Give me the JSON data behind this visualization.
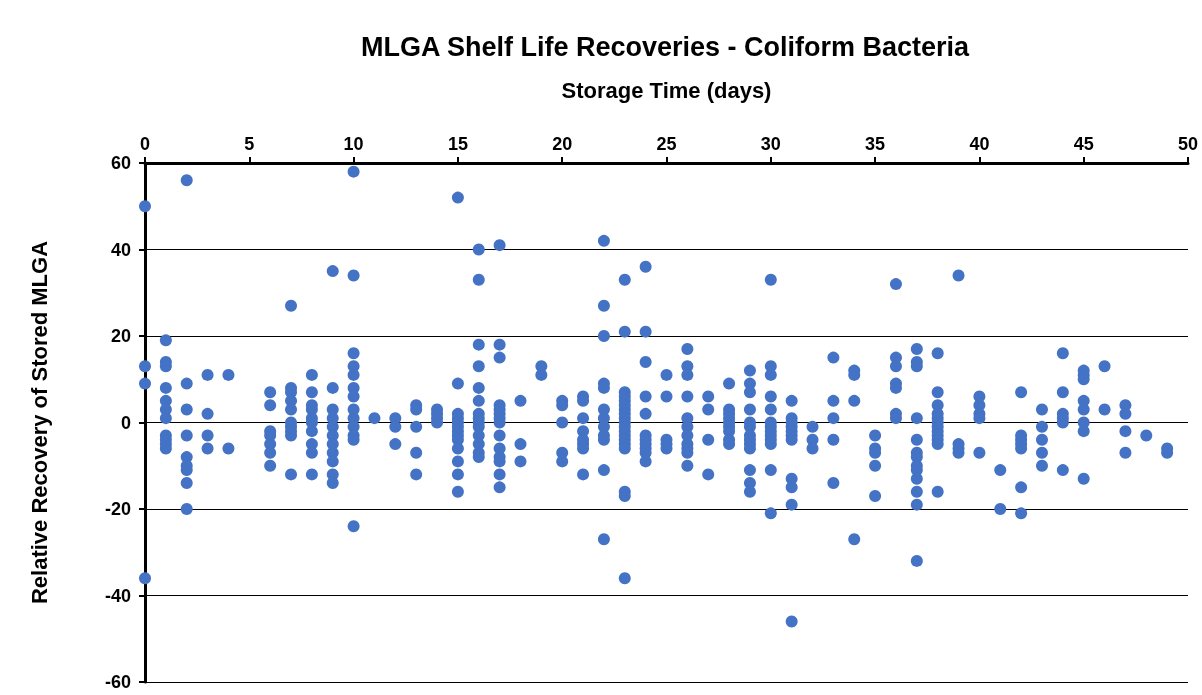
{
  "chart_data": {
    "type": "scatter",
    "title": "MLGA Shelf Life Recoveries - Coliform Bacteria",
    "xlabel": "Storage Time (days)",
    "ylabel": "Relative Recovery of Stored MLGA",
    "x": [
      0,
      0,
      0,
      0,
      1,
      1,
      1,
      1,
      1,
      1,
      1,
      1,
      1,
      1,
      1,
      2,
      2,
      2,
      2,
      2,
      2,
      2,
      2,
      2,
      3,
      3,
      3,
      3,
      4,
      4,
      6,
      6,
      6,
      6,
      6,
      6,
      6,
      7,
      7,
      7,
      7,
      7,
      7,
      7,
      7,
      7,
      7,
      8,
      8,
      8,
      8,
      8,
      8,
      8,
      8,
      8,
      8,
      9,
      9,
      9,
      9,
      9,
      9,
      9,
      9,
      9,
      9,
      9,
      10,
      10,
      10,
      10,
      10,
      10,
      10,
      10,
      10,
      10,
      10,
      10,
      10,
      11,
      12,
      12,
      12,
      13,
      13,
      13,
      13,
      13,
      14,
      14,
      14,
      14,
      15,
      15,
      15,
      15,
      15,
      15,
      15,
      15,
      15,
      15,
      15,
      15,
      15,
      16,
      16,
      16,
      16,
      16,
      16,
      16,
      16,
      16,
      16,
      16,
      16,
      16,
      16,
      17,
      17,
      17,
      17,
      17,
      17,
      17,
      17,
      17,
      17,
      17,
      17,
      17,
      17,
      18,
      18,
      18,
      19,
      19,
      20,
      20,
      20,
      20,
      20,
      21,
      21,
      21,
      21,
      21,
      21,
      21,
      21,
      22,
      22,
      22,
      22,
      22,
      22,
      22,
      22,
      22,
      22,
      22,
      22,
      23,
      23,
      23,
      23,
      23,
      23,
      23,
      23,
      23,
      23,
      23,
      23,
      23,
      23,
      23,
      23,
      23,
      23,
      23,
      24,
      24,
      24,
      24,
      24,
      24,
      24,
      24,
      24,
      24,
      24,
      25,
      25,
      25,
      25,
      25,
      26,
      26,
      26,
      26,
      26,
      26,
      26,
      26,
      26,
      26,
      26,
      27,
      27,
      27,
      27,
      28,
      28,
      28,
      28,
      28,
      28,
      28,
      28,
      28,
      29,
      29,
      29,
      29,
      29,
      29,
      29,
      29,
      29,
      29,
      29,
      29,
      29,
      30,
      30,
      30,
      30,
      30,
      30,
      30,
      30,
      30,
      30,
      30,
      30,
      30,
      31,
      31,
      31,
      31,
      31,
      31,
      31,
      31,
      31,
      31,
      31,
      32,
      32,
      32,
      33,
      33,
      33,
      33,
      33,
      34,
      34,
      34,
      34,
      35,
      35,
      35,
      35,
      35,
      36,
      36,
      36,
      36,
      36,
      36,
      36,
      37,
      37,
      37,
      37,
      37,
      37,
      37,
      37,
      37,
      37,
      37,
      37,
      37,
      38,
      38,
      38,
      38,
      38,
      38,
      38,
      38,
      38,
      38,
      38,
      38,
      39,
      39,
      39,
      39,
      40,
      40,
      40,
      40,
      40,
      41,
      41,
      42,
      42,
      42,
      42,
      42,
      42,
      42,
      43,
      43,
      43,
      43,
      43,
      44,
      44,
      44,
      44,
      44,
      44,
      45,
      45,
      45,
      45,
      45,
      45,
      45,
      45,
      46,
      46,
      47,
      47,
      47,
      47,
      48,
      49,
      49
    ],
    "values": [
      50,
      13,
      9,
      -36,
      19,
      14,
      13,
      8,
      5,
      3,
      1,
      -3,
      -4,
      -5,
      -6,
      56,
      9,
      3,
      -3,
      -8,
      -10,
      -11,
      -14,
      -20,
      11,
      2,
      -3,
      -6,
      11,
      -6,
      7,
      4,
      -2,
      -3,
      -5,
      -7,
      -10,
      27,
      8,
      7,
      5,
      3,
      0,
      -1,
      -2,
      -3,
      -12,
      11,
      7,
      4,
      3,
      1,
      0,
      -2,
      -5,
      -7,
      -12,
      35,
      8,
      3,
      1,
      -1,
      -3,
      -5,
      -7,
      -9,
      -12,
      -14,
      58,
      34,
      16,
      13,
      11,
      8,
      6,
      3,
      1,
      -1,
      -3,
      -4,
      -24,
      1,
      1,
      -1,
      -5,
      4,
      3,
      -1,
      -7,
      -12,
      3,
      2,
      1,
      0,
      52,
      9,
      2,
      1,
      0,
      -1,
      -2,
      -3,
      -4,
      -6,
      -9,
      -12,
      -16,
      40,
      33,
      18,
      13,
      8,
      5,
      2,
      1,
      0,
      -1,
      -3,
      -5,
      -7,
      -8,
      41,
      18,
      15,
      4,
      3,
      2,
      1,
      0,
      -3,
      -6,
      -8,
      -9,
      -12,
      -15,
      5,
      -5,
      -9,
      13,
      11,
      5,
      4,
      0,
      -7,
      -9,
      6,
      5,
      1,
      -2,
      -4,
      -5,
      -6,
      -12,
      42,
      27,
      20,
      9,
      8,
      3,
      1,
      -1,
      -3,
      -4,
      -11,
      -27,
      33,
      21,
      7,
      6,
      5,
      4,
      3,
      2,
      1,
      0,
      -1,
      -2,
      -3,
      -4,
      -5,
      -6,
      -16,
      -17,
      -36,
      36,
      21,
      14,
      6,
      2,
      -3,
      -4,
      -5,
      -6,
      -7,
      -9,
      11,
      6,
      -4,
      -5,
      -6,
      17,
      13,
      11,
      6,
      1,
      -1,
      -3,
      -5,
      -6,
      -7,
      -10,
      6,
      3,
      -4,
      -12,
      9,
      3,
      2,
      1,
      0,
      -1,
      -2,
      -4,
      -5,
      12,
      9,
      7,
      3,
      0,
      -1,
      -3,
      -4,
      -5,
      -6,
      -11,
      -14,
      -16,
      33,
      13,
      11,
      6,
      3,
      0,
      -1,
      -2,
      -3,
      -4,
      -5,
      -11,
      -21,
      5,
      1,
      0,
      -1,
      -2,
      -3,
      -4,
      -13,
      -15,
      -19,
      -46,
      -1,
      -4,
      -6,
      15,
      5,
      1,
      -4,
      -14,
      12,
      11,
      5,
      -27,
      -3,
      -6,
      -7,
      -10,
      -17,
      32,
      15,
      13,
      9,
      8,
      2,
      1,
      17,
      14,
      13,
      1,
      -4,
      -7,
      -8,
      -10,
      -11,
      -13,
      -16,
      -19,
      -32,
      16,
      7,
      4,
      2,
      1,
      0,
      -1,
      -2,
      -3,
      -4,
      -5,
      -16,
      34,
      -5,
      -6,
      -7,
      6,
      4,
      2,
      1,
      -7,
      -11,
      -20,
      7,
      -3,
      -4,
      -5,
      -6,
      -15,
      -21,
      3,
      -1,
      -4,
      -7,
      -10,
      16,
      7,
      2,
      1,
      0,
      -11,
      12,
      11,
      10,
      5,
      3,
      0,
      -2,
      -13,
      13,
      3,
      4,
      2,
      -2,
      -7,
      -3,
      -6,
      -7
    ],
    "color": "#4472c4",
    "marker": "circle",
    "xlim": [
      0,
      50
    ],
    "xticks": [
      0,
      5,
      10,
      15,
      20,
      25,
      30,
      35,
      40,
      45,
      50
    ],
    "ylim": [
      -60,
      60
    ],
    "yticks": [
      -60,
      -40,
      -20,
      0,
      20,
      40,
      60
    ],
    "grid": "y"
  }
}
